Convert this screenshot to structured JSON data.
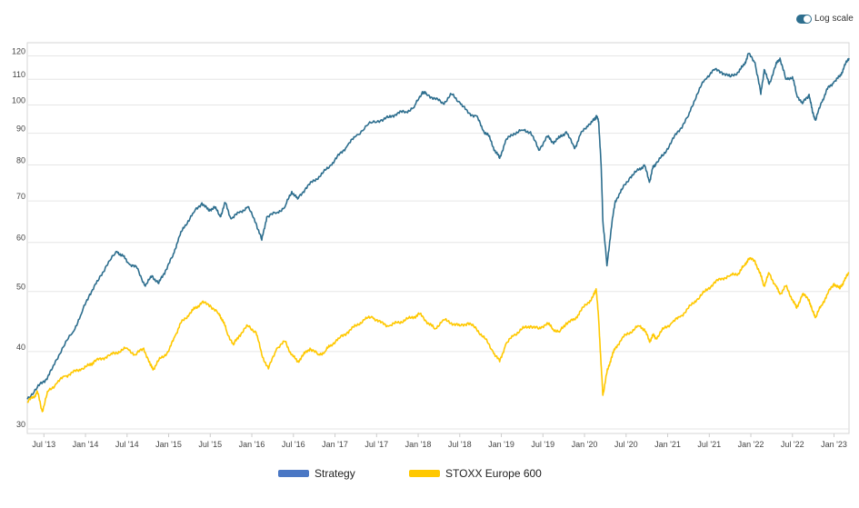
{
  "toggle": {
    "label": "Log scale",
    "on": true
  },
  "chart_data": {
    "type": "line",
    "title": "",
    "xlabel": "",
    "ylabel": "",
    "y_scale": "log",
    "ylim": [
      29.5,
      126
    ],
    "xlim": [
      2013.3,
      2023.18
    ],
    "y_ticks": [
      30,
      40,
      50,
      60,
      70,
      80,
      90,
      100,
      110,
      120
    ],
    "x_ticks": [
      {
        "label": "Jul '13",
        "t": 2013.5
      },
      {
        "label": "Jan '14",
        "t": 2014.0
      },
      {
        "label": "Jul '14",
        "t": 2014.5
      },
      {
        "label": "Jan '15",
        "t": 2015.0
      },
      {
        "label": "Jul '15",
        "t": 2015.5
      },
      {
        "label": "Jan '16",
        "t": 2016.0
      },
      {
        "label": "Jul '16",
        "t": 2016.5
      },
      {
        "label": "Jan '17",
        "t": 2017.0
      },
      {
        "label": "Jul '17",
        "t": 2017.5
      },
      {
        "label": "Jan '18",
        "t": 2018.0
      },
      {
        "label": "Jul '18",
        "t": 2018.5
      },
      {
        "label": "Jan '19",
        "t": 2019.0
      },
      {
        "label": "Jul '19",
        "t": 2019.5
      },
      {
        "label": "Jan '20",
        "t": 2020.0
      },
      {
        "label": "Jul '20",
        "t": 2020.5
      },
      {
        "label": "Jan '21",
        "t": 2021.0
      },
      {
        "label": "Jul '21",
        "t": 2021.5
      },
      {
        "label": "Jan '22",
        "t": 2022.0
      },
      {
        "label": "Jul '22",
        "t": 2022.5
      },
      {
        "label": "Jan '23",
        "t": 2023.0
      }
    ],
    "grid": true,
    "legend_position": "bottom",
    "series": [
      {
        "name": "Strategy",
        "legend_color": "#4a77c4",
        "line_color": "#2d6e8e",
        "x": [
          2013.3,
          2013.42,
          2013.52,
          2013.6,
          2013.72,
          2013.85,
          2013.95,
          2014.05,
          2014.15,
          2014.25,
          2014.38,
          2014.45,
          2014.52,
          2014.62,
          2014.72,
          2014.8,
          2014.88,
          2014.96,
          2015.05,
          2015.12,
          2015.2,
          2015.3,
          2015.4,
          2015.48,
          2015.55,
          2015.62,
          2015.68,
          2015.75,
          2015.85,
          2015.95,
          2016.05,
          2016.12,
          2016.18,
          2016.3,
          2016.4,
          2016.48,
          2016.55,
          2016.65,
          2016.75,
          2016.85,
          2016.95,
          2017.05,
          2017.15,
          2017.25,
          2017.4,
          2017.55,
          2017.65,
          2017.75,
          2017.85,
          2017.95,
          2018.05,
          2018.1,
          2018.2,
          2018.3,
          2018.4,
          2018.5,
          2018.6,
          2018.7,
          2018.78,
          2018.85,
          2018.92,
          2018.98,
          2019.05,
          2019.15,
          2019.25,
          2019.35,
          2019.45,
          2019.55,
          2019.62,
          2019.7,
          2019.78,
          2019.88,
          2019.95,
          2020.05,
          2020.12,
          2020.14,
          2020.17,
          2020.2,
          2020.22,
          2020.27,
          2020.32,
          2020.37,
          2020.45,
          2020.55,
          2020.65,
          2020.72,
          2020.78,
          2020.82,
          2020.86,
          2020.95,
          2021.05,
          2021.15,
          2021.25,
          2021.35,
          2021.45,
          2021.55,
          2021.65,
          2021.75,
          2021.85,
          2021.92,
          2021.97,
          2022.05,
          2022.12,
          2022.16,
          2022.22,
          2022.3,
          2022.35,
          2022.42,
          2022.5,
          2022.55,
          2022.62,
          2022.7,
          2022.74,
          2022.78,
          2022.85,
          2022.92,
          2023.0,
          2023.07,
          2023.12,
          2023.18
        ],
        "values": [
          33.5,
          35.0,
          36.0,
          37.5,
          40.5,
          43.0,
          46.0,
          49.5,
          52.0,
          55.0,
          58.0,
          57.0,
          55.5,
          54.5,
          51.0,
          53.0,
          51.5,
          54.0,
          57.0,
          61.0,
          64.0,
          67.0,
          69.5,
          67.5,
          68.5,
          66.0,
          69.5,
          65.5,
          67.0,
          68.5,
          64.5,
          60.5,
          66.0,
          67.0,
          68.5,
          72.5,
          70.5,
          73.5,
          75.5,
          77.5,
          80.0,
          83.0,
          86.0,
          89.0,
          93.0,
          94.5,
          95.5,
          97.0,
          97.5,
          99.0,
          105.0,
          104.0,
          102.5,
          100.5,
          104.0,
          101.0,
          97.0,
          96.0,
          91.0,
          89.0,
          84.5,
          82.0,
          87.5,
          90.0,
          91.0,
          90.5,
          84.5,
          89.0,
          87.0,
          88.5,
          90.5,
          85.0,
          89.5,
          93.0,
          94.5,
          96.0,
          94.0,
          80.0,
          65.0,
          55.0,
          63.0,
          70.0,
          73.0,
          76.5,
          78.5,
          80.0,
          75.0,
          79.0,
          80.5,
          83.0,
          87.5,
          91.5,
          96.0,
          104.0,
          110.0,
          114.0,
          113.0,
          111.0,
          113.0,
          116.0,
          121.0,
          117.0,
          104.0,
          114.0,
          108.0,
          116.0,
          119.0,
          110.0,
          111.0,
          104.0,
          100.5,
          104.0,
          97.5,
          94.5,
          101.0,
          106.0,
          109.0,
          111.0,
          115.0,
          119.0
        ]
      },
      {
        "name": "STOXX Europe 600",
        "legend_color": "#ffc800",
        "line_color": "#ffc800",
        "x": [
          2013.3,
          2013.38,
          2013.42,
          2013.48,
          2013.55,
          2013.65,
          2013.75,
          2013.85,
          2013.95,
          2014.05,
          2014.1,
          2014.2,
          2014.3,
          2014.4,
          2014.5,
          2014.6,
          2014.7,
          2014.78,
          2014.82,
          2014.9,
          2015.0,
          2015.08,
          2015.15,
          2015.25,
          2015.32,
          2015.4,
          2015.5,
          2015.6,
          2015.65,
          2015.7,
          2015.78,
          2015.85,
          2015.95,
          2016.05,
          2016.12,
          2016.2,
          2016.3,
          2016.4,
          2016.48,
          2016.55,
          2016.62,
          2016.7,
          2016.8,
          2016.88,
          2016.95,
          2017.05,
          2017.15,
          2017.25,
          2017.35,
          2017.45,
          2017.55,
          2017.65,
          2017.75,
          2017.85,
          2017.95,
          2018.02,
          2018.12,
          2018.2,
          2018.3,
          2018.4,
          2018.5,
          2018.6,
          2018.7,
          2018.8,
          2018.9,
          2018.98,
          2019.05,
          2019.15,
          2019.25,
          2019.35,
          2019.45,
          2019.55,
          2019.62,
          2019.7,
          2019.78,
          2019.88,
          2019.95,
          2020.05,
          2020.12,
          2020.14,
          2020.17,
          2020.2,
          2020.22,
          2020.27,
          2020.32,
          2020.37,
          2020.45,
          2020.55,
          2020.65,
          2020.72,
          2020.78,
          2020.82,
          2020.86,
          2020.95,
          2021.05,
          2021.15,
          2021.25,
          2021.35,
          2021.45,
          2021.55,
          2021.65,
          2021.75,
          2021.85,
          2021.92,
          2021.97,
          2022.05,
          2022.12,
          2022.16,
          2022.22,
          2022.3,
          2022.35,
          2022.42,
          2022.5,
          2022.55,
          2022.62,
          2022.7,
          2022.74,
          2022.78,
          2022.85,
          2022.92,
          2023.0,
          2023.07,
          2023.12,
          2023.18
        ],
        "values": [
          33.2,
          33.8,
          34.5,
          32.0,
          34.5,
          35.5,
          36.5,
          37.0,
          37.5,
          38.0,
          38.5,
          39.0,
          39.5,
          40.0,
          40.5,
          39.5,
          40.5,
          38.0,
          37.5,
          39.0,
          40.0,
          42.5,
          44.5,
          46.0,
          47.0,
          48.0,
          47.5,
          46.0,
          45.0,
          43.0,
          41.0,
          42.5,
          44.0,
          43.0,
          39.5,
          37.5,
          40.5,
          41.5,
          39.5,
          38.5,
          39.5,
          40.5,
          39.5,
          40.0,
          41.0,
          42.0,
          43.0,
          44.0,
          45.0,
          45.5,
          44.5,
          44.0,
          44.5,
          45.0,
          45.5,
          46.0,
          44.5,
          43.5,
          45.0,
          44.5,
          44.0,
          44.5,
          43.5,
          42.0,
          40.0,
          38.5,
          41.0,
          42.5,
          43.5,
          44.0,
          43.5,
          44.5,
          43.5,
          43.0,
          44.5,
          45.0,
          46.5,
          48.0,
          49.5,
          50.5,
          45.0,
          38.0,
          34.0,
          37.0,
          39.0,
          40.5,
          42.0,
          43.0,
          44.0,
          43.5,
          41.5,
          42.5,
          42.0,
          43.5,
          44.5,
          45.5,
          47.0,
          48.5,
          50.0,
          51.5,
          52.5,
          53.0,
          53.5,
          55.0,
          56.5,
          56.0,
          53.0,
          51.0,
          53.5,
          51.0,
          49.5,
          51.0,
          48.5,
          47.0,
          49.5,
          48.5,
          46.5,
          45.5,
          47.5,
          49.5,
          51.5,
          50.5,
          52.0,
          53.5
        ]
      }
    ]
  }
}
